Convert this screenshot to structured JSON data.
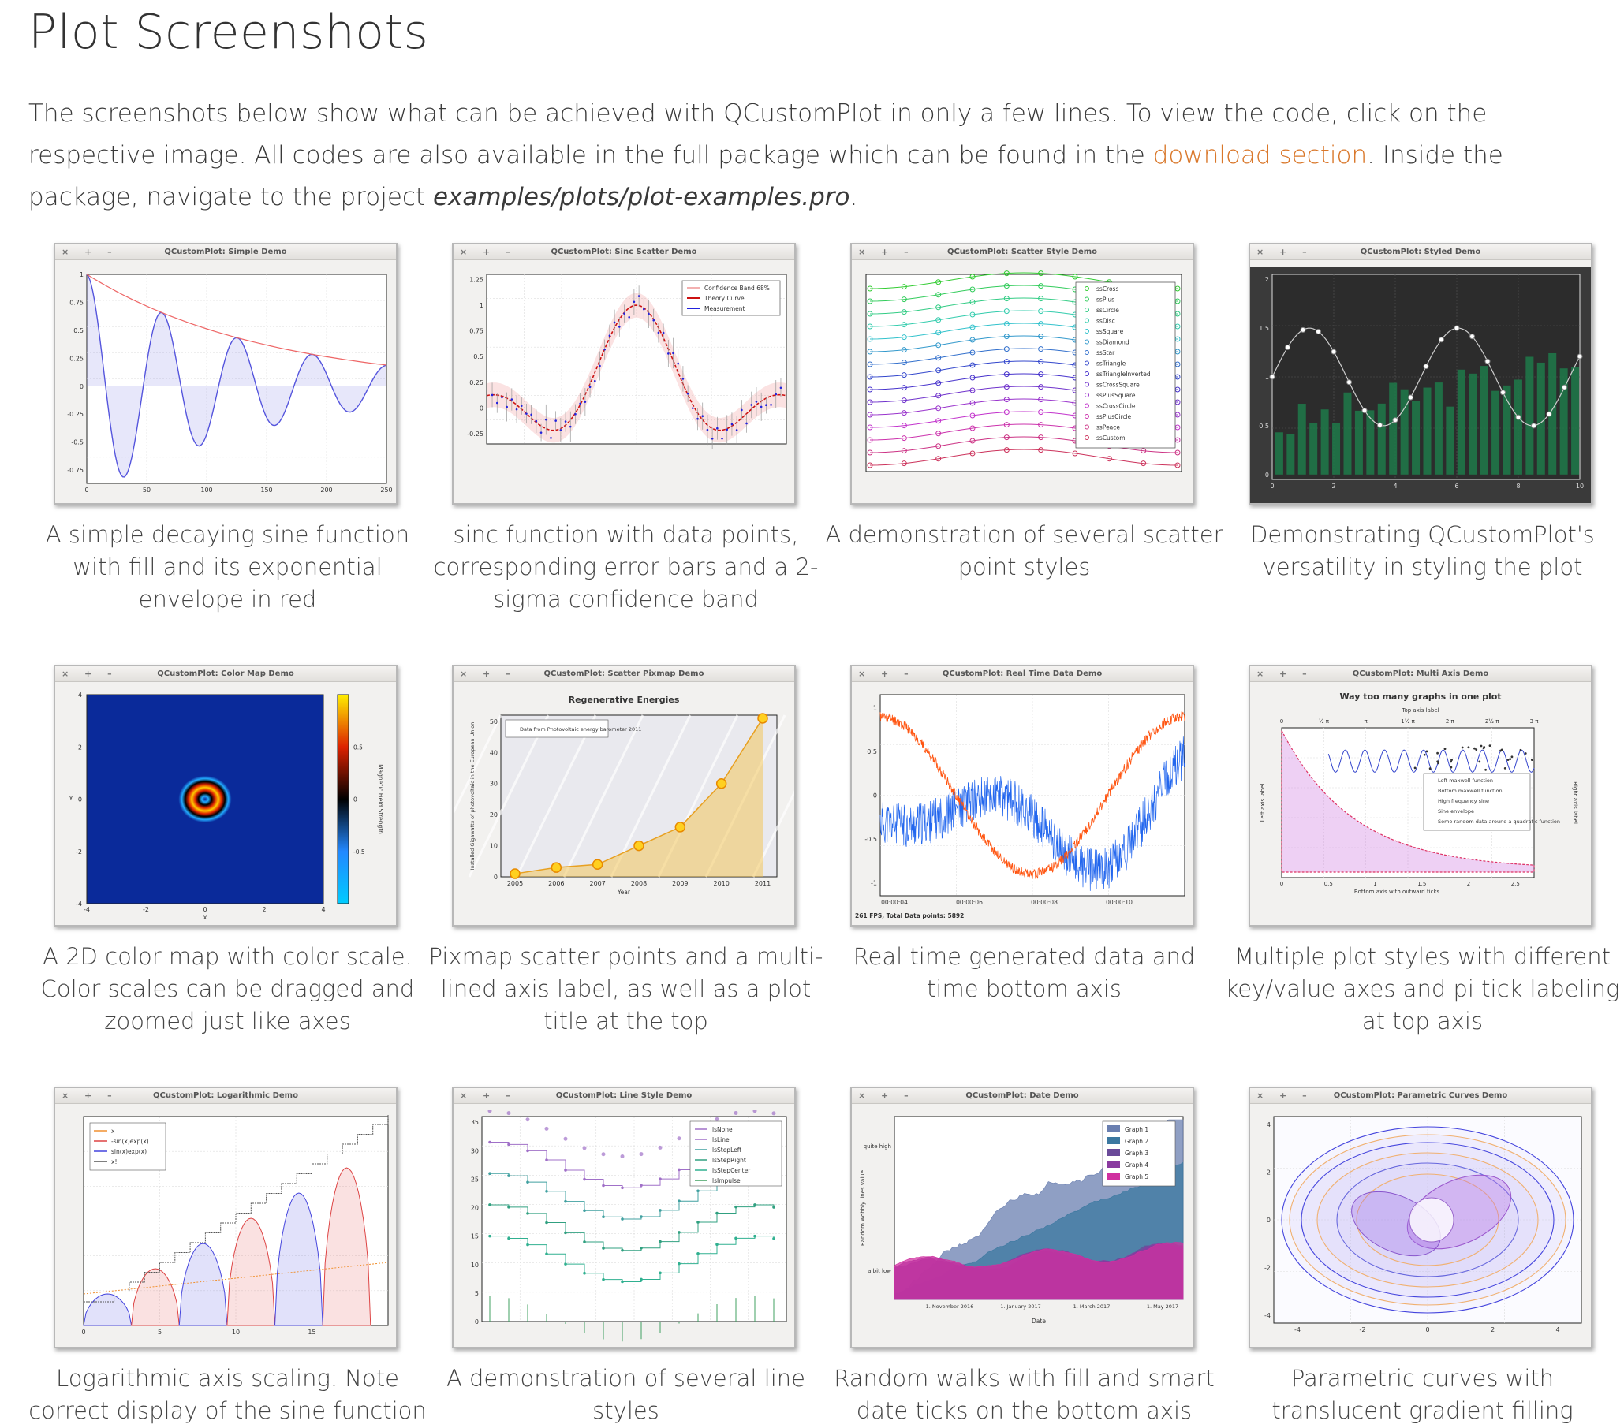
{
  "page": {
    "title": "Plot Screenshots",
    "intro_part1": "The screenshots below show what can be achieved with QCustomPlot in only a few lines. To view the code, click on the respective image. All codes are also available in the full package which can be found in the ",
    "intro_link": "download section",
    "intro_part2": ". Inside the package, navigate to the project ",
    "intro_path": "examples/plots/plot-examples.pro",
    "intro_end": "."
  },
  "window_buttons": "× + –",
  "cards": [
    {
      "window_title": "QCustomPlot: Simple Demo",
      "caption": "A simple decaying sine function with fill and its exponential envelope in red"
    },
    {
      "window_title": "QCustomPlot: Sinc Scatter Demo",
      "caption": "sinc function with data points, corresponding error bars and a 2-sigma confidence band"
    },
    {
      "window_title": "QCustomPlot: Scatter Style Demo",
      "caption": "A demonstration of several scatter point styles"
    },
    {
      "window_title": "QCustomPlot: Styled Demo",
      "caption": "Demonstrating QCustomPlot's versatility in styling the plot"
    },
    {
      "window_title": "QCustomPlot: Color Map Demo",
      "caption": "A 2D color map with color scale. Color scales can be dragged and zoomed just like axes"
    },
    {
      "window_title": "QCustomPlot: Scatter Pixmap Demo",
      "caption": "Pixmap scatter points and a multi-lined axis label, as well as a plot title at the top"
    },
    {
      "window_title": "QCustomPlot: Real Time Data Demo",
      "caption": "Real time generated data and time bottom axis"
    },
    {
      "window_title": "QCustomPlot: Multi Axis Demo",
      "caption": "Multiple plot styles with different key/value axes and pi tick labeling at top axis"
    },
    {
      "window_title": "QCustomPlot: Logarithmic Demo",
      "caption": "Logarithmic axis scaling. Note correct display of the sine function"
    },
    {
      "window_title": "QCustomPlot: Line Style Demo",
      "caption": "A demonstration of several line styles"
    },
    {
      "window_title": "QCustomPlot: Date Demo",
      "caption": "Random walks with fill and smart date ticks on the bottom axis"
    },
    {
      "window_title": "QCustomPlot: Parametric Curves Demo",
      "caption": "Parametric curves with translucent gradient filling"
    }
  ],
  "thumbs": {
    "simple": {
      "y_ticks": [
        "1",
        "0.75",
        "0.5",
        "0.25",
        "0",
        "-0.25",
        "-0.5",
        "-0.75"
      ],
      "x_ticks": [
        "0",
        "50",
        "100",
        "150",
        "200",
        "250"
      ]
    },
    "sinc": {
      "y_ticks": [
        "1.25",
        "1",
        "0.75",
        "0.5",
        "0.25",
        "0",
        "-0.25"
      ],
      "legend": [
        "Confidence Band 68%",
        "Theory Curve",
        "Measurement"
      ]
    },
    "scatter": {
      "legend": [
        "ssCross",
        "ssPlus",
        "ssCircle",
        "ssDisc",
        "ssSquare",
        "ssDiamond",
        "ssStar",
        "ssTriangle",
        "ssTriangleInverted",
        "ssCrossSquare",
        "ssPlusSquare",
        "ssCrossCircle",
        "ssPlusCircle",
        "ssPeace",
        "ssCustom"
      ]
    },
    "styled": {
      "y_ticks": [
        "2",
        "1.5",
        "1",
        "0.5",
        "0"
      ],
      "x_ticks": [
        "0",
        "2",
        "4",
        "6",
        "8",
        "10"
      ]
    },
    "colormap": {
      "y_ticks": [
        "4",
        "2",
        "0",
        "-2",
        "-4"
      ],
      "x_ticks": [
        "-4",
        "-2",
        "0",
        "2",
        "4"
      ],
      "scale_ticks": [
        "0.5",
        "0",
        "-0.5"
      ],
      "scale_label": "Magnetic Field Strength",
      "ylabel": "y",
      "xlabel": "x"
    },
    "pixmap": {
      "plot_title": "Regenerative Energies",
      "legend": "Data from Photovoltaic energy barometer 2011",
      "ylabel": "Installed Gigawatts of photovoltaic in the European Union",
      "xlabel": "Year",
      "x_ticks": [
        "2005",
        "2006",
        "2007",
        "2008",
        "2009",
        "2010",
        "2011"
      ],
      "y_ticks": [
        "50",
        "40",
        "30",
        "20",
        "10",
        "0"
      ]
    },
    "realtime": {
      "y_ticks": [
        "1",
        "0.5",
        "0",
        "-0.5",
        "-1"
      ],
      "x_ticks": [
        "00:00:04",
        "00:00:06",
        "00:00:08",
        "00:00:10"
      ],
      "status": "261 FPS, Total Data points: 5892"
    },
    "multiaxis": {
      "plot_title": "Way too many graphs in one plot",
      "top_label": "Top axis label",
      "bottom_label": "Bottom axis with outward ticks",
      "left_label": "Left axis label",
      "right_label": "Right axis label",
      "top_ticks": [
        "0",
        "½ π",
        "π",
        "1½ π",
        "2 π",
        "2½ π",
        "3 π"
      ],
      "bottom_ticks": [
        "0",
        "0.5",
        "1",
        "1.5",
        "2",
        "2.5"
      ],
      "legend": [
        "Left maxwell function",
        "Bottom maxwell function",
        "High frequency sine",
        "Sine envelope",
        "Some random data around a quadratic function"
      ]
    },
    "log": {
      "legend": [
        "x",
        "-sin(x)exp(x)",
        "sin(x)exp(x)",
        "x!"
      ],
      "x_ticks": [
        "0",
        "5",
        "10",
        "15"
      ]
    },
    "linestyle": {
      "legend": [
        "lsNone",
        "lsLine",
        "lsStepLeft",
        "lsStepRight",
        "lsStepCenter",
        "lsImpulse"
      ],
      "y_ticks": [
        "35",
        "30",
        "25",
        "20",
        "15",
        "10",
        "5",
        "0"
      ]
    },
    "date": {
      "legend": [
        "Graph 1",
        "Graph 2",
        "Graph 3",
        "Graph 4",
        "Graph 5"
      ],
      "ylabel": "Random wobbly lines value",
      "xlabel": "Date",
      "y_tick_high": "quite high",
      "y_tick_low": "a bit low",
      "x_ticks": [
        "1. November 2016",
        "1. January 2017",
        "1. March 2017",
        "1. May 2017"
      ]
    },
    "parametric": {
      "y_ticks": [
        "4",
        "2",
        "0",
        "-2",
        "-4"
      ],
      "x_ticks": [
        "-4",
        "-2",
        "0",
        "2",
        "4"
      ]
    }
  }
}
